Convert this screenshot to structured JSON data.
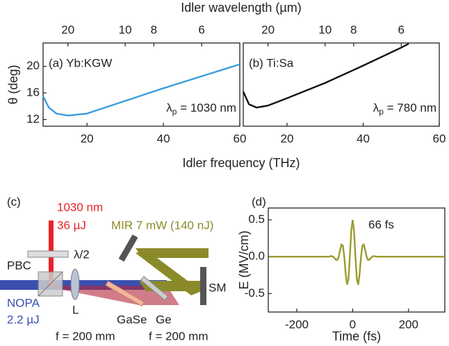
{
  "chart_data": [
    {
      "type": "line",
      "xlabel": "Idler frequency (THz)",
      "ylabel": "θ (deg)",
      "x2label": "Idler wavelength (µm)",
      "annotation": "(a) Yb:KGW",
      "pump": {
        "symbol": "λ",
        "sub": "p",
        "text": " = 1030 nm"
      },
      "xlim": [
        8.5,
        60
      ],
      "xticks": [
        20,
        40,
        60
      ],
      "ylim": [
        11,
        23.5
      ],
      "yticks": [
        12,
        16,
        20
      ],
      "x2ticks": [
        {
          "value": 15,
          "label": "20"
        },
        {
          "value": 30,
          "label": "10"
        },
        {
          "value": 37.5,
          "label": "8"
        },
        {
          "value": 50,
          "label": "6"
        }
      ],
      "series": [
        {
          "color": "#3a9bd8",
          "x": [
            8.5,
            10,
            12,
            15,
            20,
            30,
            40,
            50,
            60
          ],
          "values": [
            15.5,
            13.8,
            12.9,
            12.6,
            12.9,
            14.8,
            16.7,
            18.5,
            20.3
          ]
        }
      ]
    },
    {
      "type": "line",
      "annotation": "(b) Ti:Sa",
      "pump": {
        "symbol": "λ",
        "sub": "p",
        "text": " = 780 nm"
      },
      "xlim": [
        8.5,
        60
      ],
      "xticks": [
        20,
        40,
        60
      ],
      "ylim": [
        11,
        23.5
      ],
      "x2ticks": [
        {
          "value": 15,
          "label": "20"
        },
        {
          "value": 30,
          "label": "10"
        },
        {
          "value": 37.5,
          "label": "8"
        },
        {
          "value": 50,
          "label": "6"
        }
      ],
      "series": [
        {
          "color": "#111111",
          "x": [
            8.5,
            10,
            12,
            15,
            20,
            30,
            40,
            50,
            52
          ],
          "values": [
            16.2,
            14.3,
            13.8,
            14.1,
            15.2,
            17.5,
            20.1,
            22.8,
            23.4
          ]
        }
      ]
    },
    {
      "type": "line",
      "panel": "(d)",
      "xlabel": "Time (fs)",
      "ylabel": "E (MV/cm)",
      "annotation": "66 fs",
      "xlim": [
        -302,
        330
      ],
      "xticks": [
        -200,
        0,
        200
      ],
      "ylim": [
        -0.75,
        0.66
      ],
      "yticks": [
        0.5,
        {
          "value": 0,
          "label": "0.0"
        },
        -0.5
      ],
      "series": [
        {
          "color": "#9c9a2e",
          "x": [
            -300,
            -200,
            -100,
            -85,
            -80,
            -75,
            -70,
            -65,
            -60,
            -55,
            -50,
            -45,
            -40,
            -35,
            -30,
            -25,
            -20,
            -15,
            -10,
            -5,
            0,
            5,
            10,
            15,
            20,
            25,
            30,
            35,
            40,
            45,
            50,
            55,
            60,
            65,
            70,
            75,
            80,
            85,
            100,
            200,
            330
          ],
          "values": [
            0,
            0,
            0,
            0,
            0.006,
            0.007,
            0,
            -0.019,
            -0.041,
            -0.043,
            0,
            0.087,
            0.165,
            0.151,
            0,
            -0.229,
            -0.379,
            -0.302,
            0,
            0.347,
            0.5,
            0.347,
            0,
            -0.302,
            -0.379,
            -0.229,
            0,
            0.151,
            0.165,
            0.087,
            0,
            -0.043,
            -0.041,
            -0.019,
            0,
            0.007,
            0.006,
            0,
            0,
            0,
            0
          ]
        }
      ]
    }
  ],
  "diagram": {
    "labels": [
      "(c)",
      "1030 nm",
      "36 µJ",
      "MIR 7 mW (140 nJ)",
      "λ/2",
      "PBC",
      "L",
      "GaSe",
      "Ge",
      "SM",
      "NOPA",
      "2.2 µJ",
      "f = 200 mm",
      "f = 200 mm"
    ]
  }
}
